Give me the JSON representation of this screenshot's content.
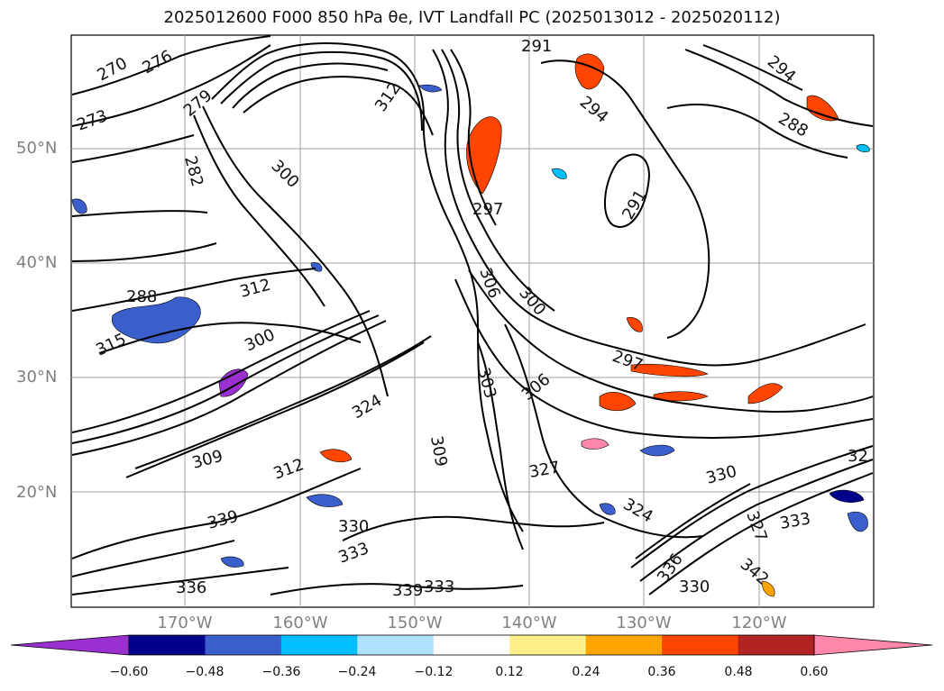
{
  "title": "2025012600 F000 850 hPa θe, IVT Landfall PC (2025013012 - 2025020112)",
  "map": {
    "lat_labels": [
      "50°N",
      "40°N",
      "30°N",
      "20°N"
    ],
    "lon_labels": [
      "170°W",
      "160°W",
      "150°W",
      "140°W",
      "130°W",
      "120°W"
    ],
    "contour_labels": [
      "270",
      "276",
      "273",
      "279",
      "282",
      "300",
      "312",
      "291",
      "294",
      "288",
      "294",
      "297",
      "306",
      "300",
      "297",
      "291",
      "288",
      "312",
      "315",
      "300",
      "324",
      "303",
      "306",
      "309",
      "309",
      "312",
      "327",
      "330",
      "324",
      "339",
      "330",
      "333",
      "336",
      "333",
      "339",
      "342",
      "336",
      "330",
      "327",
      "333",
      "32"
    ],
    "gridlines": true,
    "colors": {
      "contour": "#000000",
      "grid": "#a0a0a0",
      "frame": "#000000"
    }
  },
  "colorbar": {
    "ticks": [
      "−0.60",
      "−0.48",
      "−0.36",
      "−0.24",
      "−0.12",
      "0.12",
      "0.24",
      "0.36",
      "0.48",
      "0.60"
    ],
    "colors": [
      "#9b30d0",
      "#00008b",
      "#3a5fcd",
      "#00bfff",
      "#b0e2ff",
      "#ffffff",
      "#fff08a",
      "#ffa500",
      "#ff4500",
      "#b22222",
      "#ff88aa",
      "#ff88aa"
    ]
  }
}
